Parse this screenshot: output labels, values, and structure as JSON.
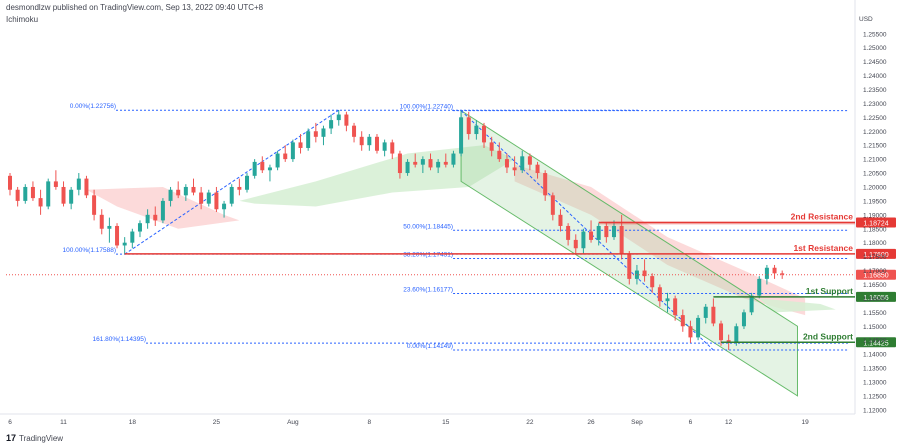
{
  "header": {
    "published_by": "desmondlzw published on TradingView.com, Sep 13, 2022 09:40 UTC+8",
    "indicator": "Ichimoku"
  },
  "footer": {
    "brand": "TradingView"
  },
  "colors": {
    "bull": "#26a69a",
    "bear": "#ef5350",
    "resistance": "#e53935",
    "support": "#2e7d32",
    "fib": "#2962ff",
    "channel": "#a5d6a7",
    "cloud_bear": "#fbd4d3",
    "cloud_bull": "#d5efd2"
  },
  "chart_data": {
    "type": "candlestick",
    "currency": "USD",
    "x_tick_labels": [
      "6",
      "11",
      "18",
      "25",
      "Aug",
      "8",
      "15",
      "22",
      "26",
      "Sep",
      "6",
      "12",
      "19"
    ],
    "y_tick_labels": [
      "1.25500",
      "1.25000",
      "1.24500",
      "1.24000",
      "1.23500",
      "1.23000",
      "1.22500",
      "1.22000",
      "1.21500",
      "1.21000",
      "1.20500",
      "1.20000",
      "1.19500",
      "1.19000",
      "1.18500",
      "1.18000",
      "1.17500",
      "1.17000",
      "1.16500",
      "1.16000",
      "1.15500",
      "1.15000",
      "1.14500",
      "1.14000",
      "1.13500",
      "1.13000",
      "1.12500",
      "1.12000"
    ],
    "ylim": [
      1.1185,
      1.2585
    ],
    "current_price": 1.1685,
    "levels": [
      {
        "name": "2nd Resistance",
        "value": 1.18724,
        "label": "1.18724",
        "kind": "resistance"
      },
      {
        "name": "1st Resistance",
        "value": 1.176,
        "label": "1.17600",
        "kind": "resistance"
      },
      {
        "name": "1st Support",
        "value": 1.16056,
        "label": "1.16056",
        "kind": "support"
      },
      {
        "name": "2nd Support",
        "value": 1.14425,
        "label": "1.14425",
        "kind": "support"
      }
    ],
    "price_label": {
      "value": 1.1685,
      "label": "1.16850"
    },
    "fib_left": [
      {
        "text": "0.00%(1.22756)",
        "value": 1.22756
      },
      {
        "text": "100.00%(1.17588)",
        "value": 1.17588
      }
    ],
    "fib_right": [
      {
        "text": "100.00%(1.22740)",
        "value": 1.2274
      },
      {
        "text": "50.00%(1.18445)",
        "value": 1.18445
      },
      {
        "text": "38.20%(1.17431)",
        "value": 1.17431
      },
      {
        "text": "23.60%(1.16177)",
        "value": 1.16177
      },
      {
        "text": "0.00%(1.14149)",
        "value": 1.14149
      },
      {
        "text": "161.80%(1.14395)",
        "value": 1.14395
      }
    ],
    "candles": [
      [
        1.204,
        1.205,
        1.197,
        1.199
      ],
      [
        1.199,
        1.2,
        1.193,
        1.195
      ],
      [
        1.195,
        1.201,
        1.194,
        1.2
      ],
      [
        1.2,
        1.202,
        1.195,
        1.196
      ],
      [
        1.196,
        1.199,
        1.19,
        1.193
      ],
      [
        1.193,
        1.203,
        1.192,
        1.202
      ],
      [
        1.202,
        1.206,
        1.199,
        1.2
      ],
      [
        1.2,
        1.202,
        1.193,
        1.194
      ],
      [
        1.194,
        1.2,
        1.192,
        1.199
      ],
      [
        1.199,
        1.205,
        1.197,
        1.203
      ],
      [
        1.203,
        1.204,
        1.196,
        1.197
      ],
      [
        1.197,
        1.199,
        1.188,
        1.19
      ],
      [
        1.19,
        1.192,
        1.183,
        1.185
      ],
      [
        1.185,
        1.189,
        1.18,
        1.186
      ],
      [
        1.186,
        1.187,
        1.178,
        1.179
      ],
      [
        1.179,
        1.182,
        1.1759,
        1.18
      ],
      [
        1.18,
        1.185,
        1.178,
        1.184
      ],
      [
        1.184,
        1.188,
        1.182,
        1.187
      ],
      [
        1.187,
        1.192,
        1.185,
        1.19
      ],
      [
        1.19,
        1.193,
        1.186,
        1.188
      ],
      [
        1.188,
        1.196,
        1.187,
        1.195
      ],
      [
        1.195,
        1.2,
        1.193,
        1.199
      ],
      [
        1.199,
        1.202,
        1.196,
        1.197
      ],
      [
        1.197,
        1.201,
        1.195,
        1.2
      ],
      [
        1.2,
        1.203,
        1.197,
        1.198
      ],
      [
        1.198,
        1.2,
        1.192,
        1.194
      ],
      [
        1.194,
        1.199,
        1.193,
        1.198
      ],
      [
        1.198,
        1.2,
        1.191,
        1.192
      ],
      [
        1.192,
        1.195,
        1.189,
        1.194
      ],
      [
        1.194,
        1.201,
        1.193,
        1.2
      ],
      [
        1.2,
        1.203,
        1.197,
        1.199
      ],
      [
        1.199,
        1.205,
        1.198,
        1.204
      ],
      [
        1.204,
        1.21,
        1.203,
        1.209
      ],
      [
        1.209,
        1.211,
        1.205,
        1.206
      ],
      [
        1.206,
        1.208,
        1.202,
        1.207
      ],
      [
        1.207,
        1.213,
        1.206,
        1.212
      ],
      [
        1.212,
        1.215,
        1.209,
        1.21
      ],
      [
        1.21,
        1.217,
        1.209,
        1.216
      ],
      [
        1.216,
        1.219,
        1.212,
        1.214
      ],
      [
        1.214,
        1.221,
        1.213,
        1.22
      ],
      [
        1.22,
        1.223,
        1.216,
        1.218
      ],
      [
        1.218,
        1.222,
        1.215,
        1.221
      ],
      [
        1.221,
        1.226,
        1.219,
        1.224
      ],
      [
        1.224,
        1.2276,
        1.222,
        1.226
      ],
      [
        1.226,
        1.227,
        1.22,
        1.222
      ],
      [
        1.222,
        1.223,
        1.216,
        1.218
      ],
      [
        1.218,
        1.22,
        1.213,
        1.215
      ],
      [
        1.215,
        1.219,
        1.213,
        1.218
      ],
      [
        1.218,
        1.219,
        1.212,
        1.213
      ],
      [
        1.213,
        1.217,
        1.211,
        1.216
      ],
      [
        1.216,
        1.217,
        1.21,
        1.212
      ],
      [
        1.212,
        1.213,
        1.203,
        1.205
      ],
      [
        1.205,
        1.21,
        1.204,
        1.209
      ],
      [
        1.209,
        1.212,
        1.207,
        1.208
      ],
      [
        1.208,
        1.211,
        1.205,
        1.21
      ],
      [
        1.21,
        1.212,
        1.206,
        1.207
      ],
      [
        1.207,
        1.21,
        1.205,
        1.209
      ],
      [
        1.209,
        1.212,
        1.207,
        1.208
      ],
      [
        1.208,
        1.213,
        1.207,
        1.212
      ],
      [
        1.212,
        1.2274,
        1.211,
        1.225
      ],
      [
        1.225,
        1.227,
        1.217,
        1.219
      ],
      [
        1.219,
        1.224,
        1.217,
        1.222
      ],
      [
        1.222,
        1.223,
        1.214,
        1.216
      ],
      [
        1.216,
        1.218,
        1.211,
        1.213
      ],
      [
        1.213,
        1.216,
        1.209,
        1.21
      ],
      [
        1.21,
        1.212,
        1.205,
        1.207
      ],
      [
        1.207,
        1.211,
        1.204,
        1.206
      ],
      [
        1.206,
        1.213,
        1.205,
        1.211
      ],
      [
        1.211,
        1.212,
        1.206,
        1.208
      ],
      [
        1.208,
        1.209,
        1.203,
        1.205
      ],
      [
        1.205,
        1.206,
        1.195,
        1.197
      ],
      [
        1.197,
        1.198,
        1.188,
        1.19
      ],
      [
        1.19,
        1.192,
        1.184,
        1.186
      ],
      [
        1.186,
        1.187,
        1.179,
        1.181
      ],
      [
        1.181,
        1.183,
        1.1759,
        1.178
      ],
      [
        1.178,
        1.185,
        1.176,
        1.184
      ],
      [
        1.184,
        1.188,
        1.18,
        1.181
      ],
      [
        1.181,
        1.187,
        1.179,
        1.186
      ],
      [
        1.186,
        1.187,
        1.18,
        1.182
      ],
      [
        1.182,
        1.188,
        1.181,
        1.186
      ],
      [
        1.186,
        1.19,
        1.174,
        1.176
      ],
      [
        1.176,
        1.177,
        1.165,
        1.167
      ],
      [
        1.167,
        1.172,
        1.165,
        1.17
      ],
      [
        1.17,
        1.174,
        1.166,
        1.168
      ],
      [
        1.168,
        1.169,
        1.162,
        1.164
      ],
      [
        1.164,
        1.165,
        1.157,
        1.159
      ],
      [
        1.159,
        1.162,
        1.155,
        1.16
      ],
      [
        1.16,
        1.161,
        1.152,
        1.154
      ],
      [
        1.154,
        1.156,
        1.148,
        1.15
      ],
      [
        1.15,
        1.152,
        1.144,
        1.146
      ],
      [
        1.146,
        1.154,
        1.145,
        1.153
      ],
      [
        1.153,
        1.158,
        1.151,
        1.157
      ],
      [
        1.157,
        1.16,
        1.15,
        1.151
      ],
      [
        1.151,
        1.152,
        1.143,
        1.145
      ],
      [
        1.145,
        1.147,
        1.1415,
        1.144
      ],
      [
        1.144,
        1.151,
        1.143,
        1.15
      ],
      [
        1.15,
        1.156,
        1.149,
        1.155
      ],
      [
        1.155,
        1.162,
        1.154,
        1.161
      ],
      [
        1.161,
        1.168,
        1.16,
        1.167
      ],
      [
        1.167,
        1.172,
        1.165,
        1.171
      ],
      [
        1.171,
        1.172,
        1.167,
        1.169
      ],
      [
        1.169,
        1.17,
        1.167,
        1.1685
      ]
    ],
    "fib_pivots": {
      "left": [
        [
          15,
          1.17588
        ],
        [
          43,
          1.22756
        ]
      ],
      "right": [
        [
          59,
          1.2274
        ],
        [
          92,
          1.14149
        ]
      ]
    },
    "channel": {
      "upper": [
        [
          59,
          1.2274
        ],
        [
          103,
          1.15
        ]
      ],
      "lower": [
        [
          59,
          1.202
        ],
        [
          103,
          1.125
        ]
      ]
    }
  }
}
